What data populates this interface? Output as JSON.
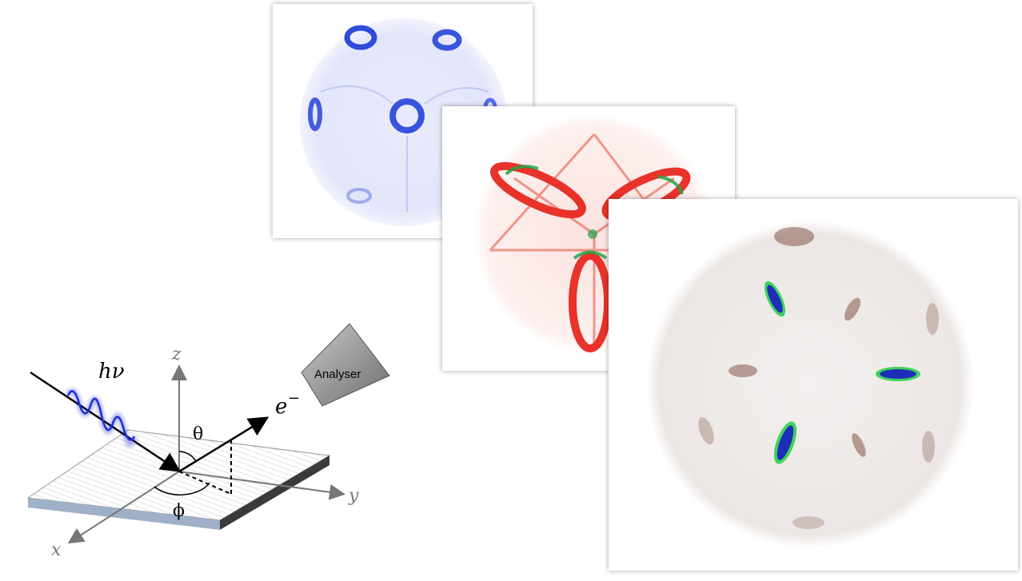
{
  "diagram": {
    "photon_label": "hν",
    "electron_label": "e",
    "electron_superscript": "−",
    "analyser_label": "Analyser",
    "axis_x": "x",
    "axis_y": "y",
    "axis_z": "z",
    "theta_label": "θ",
    "phi_label": "ϕ"
  },
  "colors": {
    "panel_blue_pattern": "#1a3ad6",
    "panel_red_pattern": "#e8322a",
    "panel_red_inner": "#22a34a",
    "panel_green_pattern": "#7a4a3a",
    "panel_green_spot": "#1d2fb8",
    "panel_green_rim": "#3fd35c",
    "photon_wave": "#1a2bd8",
    "analyser_fill": "#8c8c8c"
  }
}
